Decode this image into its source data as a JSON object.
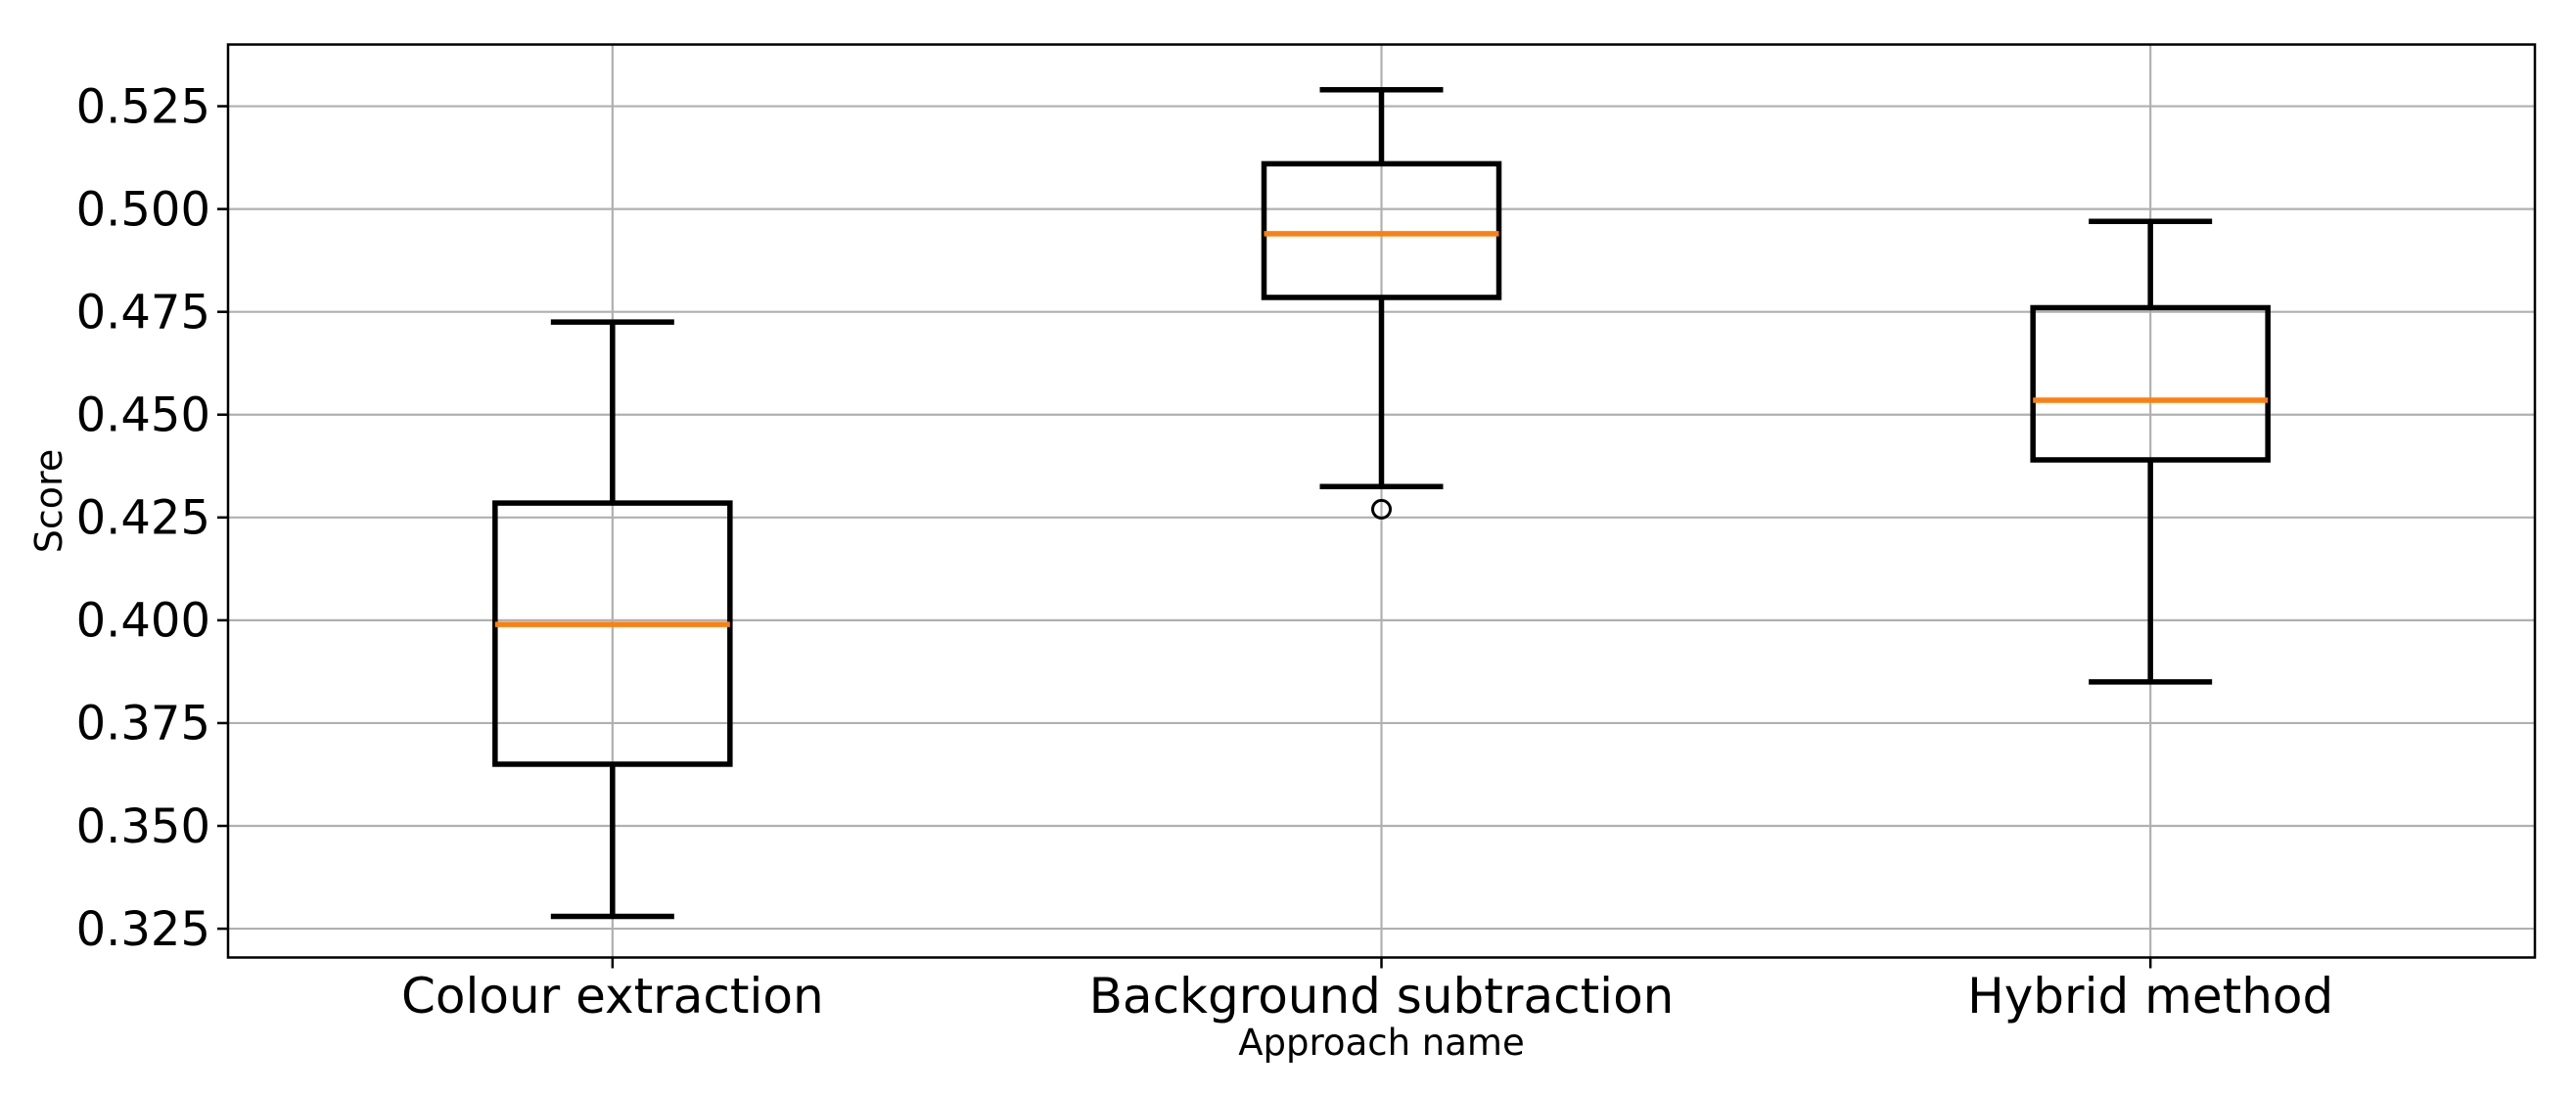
{
  "figure": {
    "background": "#ffffff"
  },
  "chart_data": {
    "type": "boxplot",
    "title": "",
    "xlabel": "Approach name",
    "ylabel": "Score",
    "categories": [
      "Colour extraction",
      "Background subtraction",
      "Hybrid method"
    ],
    "y_tick_labels": [
      "0.325",
      "0.350",
      "0.375",
      "0.400",
      "0.425",
      "0.450",
      "0.475",
      "0.500",
      "0.525"
    ],
    "ylim": [
      0.318,
      0.54
    ],
    "grid": true,
    "legend": false,
    "colors": {
      "median": "#ff7f0e",
      "box_line": "#000000",
      "grid_line": "#b0b0b0",
      "spine": "#000000",
      "text": "#000000",
      "background": "#ffffff"
    },
    "boxes": [
      {
        "label": "Colour extraction",
        "whisker_low": 0.328,
        "q1": 0.365,
        "median": 0.399,
        "q3": 0.4285,
        "whisker_high": 0.4725,
        "outliers": []
      },
      {
        "label": "Background subtraction",
        "whisker_low": 0.4325,
        "q1": 0.4785,
        "median": 0.494,
        "q3": 0.511,
        "whisker_high": 0.529,
        "outliers": [
          0.427
        ]
      },
      {
        "label": "Hybrid method",
        "whisker_low": 0.385,
        "q1": 0.439,
        "median": 0.4535,
        "q3": 0.476,
        "whisker_high": 0.497,
        "outliers": []
      }
    ]
  }
}
